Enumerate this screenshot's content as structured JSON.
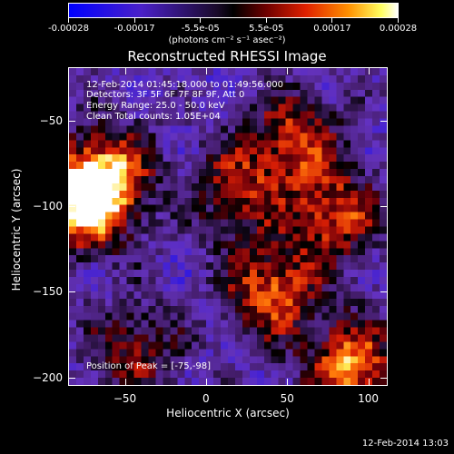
{
  "colorbar": {
    "tick_labels": [
      "-0.00028",
      "-0.00017",
      "-5.5e-05",
      "5.5e-05",
      "0.00017",
      "0.00028"
    ],
    "units": "(photons cm⁻² s⁻¹ asec⁻²)",
    "range": [
      -0.00028,
      0.00028
    ]
  },
  "title": "Reconstructed RHESSI Image",
  "info": {
    "time": "12-Feb-2014 01:45:18.000 to 01:49:56.000",
    "detectors": "Detectors: 3F 5F 6F 7F 8F 9F, Att 0",
    "energy": "Energy Range: 25.0 - 50.0 keV",
    "clean": "Clean     Total counts: 1.05E+04",
    "peak": "Position of Peak = [-75,-98]"
  },
  "chart_data": {
    "type": "heatmap",
    "title": "Reconstructed RHESSI Image",
    "xlabel": "Heliocentric X (arcsec)",
    "ylabel": "Heliocentric Y (arcsec)",
    "xlim": [
      -85,
      112
    ],
    "ylim": [
      -205,
      -19
    ],
    "xticks": [
      -50,
      0,
      50,
      100
    ],
    "yticks": [
      -50,
      -100,
      -150,
      -200
    ],
    "xtick_labels": [
      "−50",
      "0",
      "50",
      "100"
    ],
    "ytick_labels": [
      "−50",
      "−100",
      "−150",
      "−200"
    ],
    "colormap": "hot-to-purple (blue/purple negative, black zero, red-orange-yellow-white positive)",
    "peak_position": [
      -75,
      -98
    ],
    "bright_regions": [
      {
        "x": -75,
        "y": -98,
        "level": 1.0
      },
      {
        "x": -60,
        "y": -80,
        "level": 0.65
      },
      {
        "x": 40,
        "y": -150,
        "level": 0.75
      },
      {
        "x": 90,
        "y": -195,
        "level": 0.85
      },
      {
        "x": 80,
        "y": -105,
        "level": 0.7
      },
      {
        "x": 55,
        "y": -60,
        "level": 0.6
      },
      {
        "x": 20,
        "y": -90,
        "level": 0.55
      },
      {
        "x": -45,
        "y": -185,
        "level": 0.5
      }
    ]
  },
  "timestamp": "12-Feb-2014 13:03"
}
